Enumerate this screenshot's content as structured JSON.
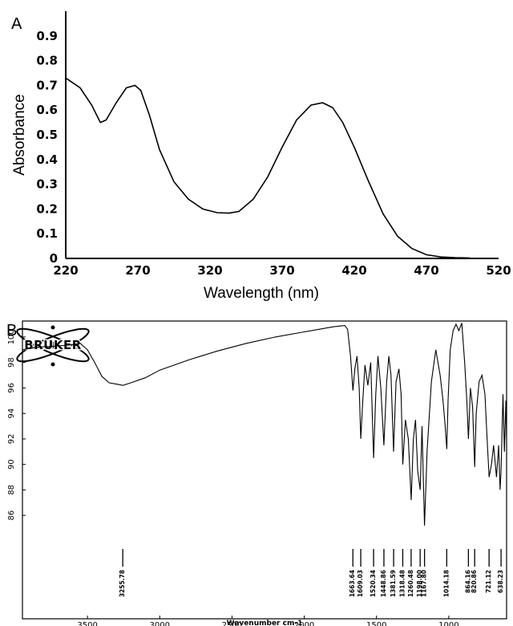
{
  "chart_data": [
    {
      "panel_label": "A",
      "type": "line",
      "title": "",
      "xlabel": "Wavelength (nm)",
      "ylabel": "Absorbance",
      "xlim": [
        220,
        520
      ],
      "ylim": [
        0,
        1.0
      ],
      "x_ticks": [
        "220",
        "270",
        "320",
        "370",
        "420",
        "470",
        "520"
      ],
      "y_ticks": [
        "0",
        "0.1",
        "0.2",
        "0.3",
        "0.4",
        "0.5",
        "0.6",
        "0.7",
        "0.8",
        "0.9"
      ],
      "grid": false,
      "line_color": "#000000",
      "series": [
        {
          "x": [
            220,
            230,
            238,
            244,
            248,
            255,
            262,
            268,
            272,
            278,
            285,
            295,
            305,
            315,
            325,
            333,
            340,
            350,
            360,
            370,
            380,
            390,
            398,
            405,
            412,
            420,
            430,
            440,
            450,
            460,
            470,
            480,
            490,
            500
          ],
          "values": [
            0.73,
            0.69,
            0.62,
            0.55,
            0.56,
            0.63,
            0.69,
            0.7,
            0.68,
            0.58,
            0.44,
            0.31,
            0.24,
            0.2,
            0.185,
            0.183,
            0.19,
            0.24,
            0.33,
            0.45,
            0.56,
            0.62,
            0.63,
            0.61,
            0.55,
            0.45,
            0.31,
            0.18,
            0.09,
            0.04,
            0.015,
            0.006,
            0.003,
            0.002
          ]
        }
      ]
    },
    {
      "panel_label": "B",
      "type": "line",
      "title": "",
      "xlabel": "Wavenumber cm-1",
      "ylabel": "",
      "logo": "BRUKER",
      "xlim": [
        3950,
        600
      ],
      "ylim": [
        84.5,
        101
      ],
      "x_ticks": [
        "3500",
        "3000",
        "2500",
        "2000",
        "1500",
        "1000"
      ],
      "y_ticks": [
        "86",
        "88",
        "90",
        "92",
        "94",
        "96",
        "98",
        "100"
      ],
      "grid": false,
      "line_color": "#000000",
      "series": [
        {
          "x": [
            3950,
            3850,
            3700,
            3600,
            3550,
            3500,
            3450,
            3400,
            3350,
            3300,
            3255,
            3200,
            3100,
            3000,
            2800,
            2600,
            2400,
            2200,
            2000,
            1800,
            1720,
            1700,
            1680,
            1663,
            1650,
            1635,
            1620,
            1609,
            1595,
            1580,
            1560,
            1540,
            1520,
            1505,
            1490,
            1470,
            1449,
            1430,
            1415,
            1400,
            1382,
            1365,
            1345,
            1330,
            1318,
            1300,
            1280,
            1260,
            1245,
            1230,
            1215,
            1198,
            1185,
            1168,
            1150,
            1120,
            1090,
            1060,
            1040,
            1025,
            1014,
            1005,
            990,
            970,
            950,
            930,
            910,
            890,
            875,
            864,
            850,
            835,
            821,
            810,
            790,
            770,
            750,
            735,
            721,
            705,
            690,
            670,
            655,
            645,
            638,
            625,
            615,
            605,
            600
          ],
          "values": [
            99.0,
            99.2,
            99.3,
            99.4,
            99.5,
            99.0,
            98.0,
            96.9,
            96.4,
            96.3,
            96.2,
            96.4,
            96.8,
            97.4,
            98.2,
            98.9,
            99.5,
            100.0,
            100.4,
            100.8,
            100.9,
            100.6,
            98.5,
            95.8,
            97.5,
            98.5,
            96.0,
            92.0,
            95.0,
            97.8,
            96.2,
            98.0,
            90.5,
            95.5,
            98.5,
            96.0,
            91.5,
            96.5,
            98.5,
            97.0,
            91.0,
            96.5,
            97.5,
            95.5,
            90.0,
            93.5,
            92.0,
            87.2,
            92.0,
            93.5,
            89.5,
            88.0,
            93.0,
            85.2,
            91.0,
            96.5,
            99.0,
            97.0,
            95.0,
            93.0,
            91.2,
            95.0,
            99.0,
            100.5,
            101.0,
            100.5,
            101.1,
            98.0,
            95.0,
            92.0,
            96.0,
            94.5,
            89.8,
            94.0,
            96.5,
            97.0,
            95.5,
            92.0,
            89.0,
            90.0,
            91.5,
            89.0,
            91.5,
            88.0,
            89.5,
            95.5,
            91.0,
            95.0,
            92.0
          ]
        }
      ],
      "peak_labels": [
        "3255.78",
        "1663.64",
        "1609.03",
        "1520.34",
        "1448.86",
        "1381.59",
        "1318.48",
        "1260.48",
        "1198.00",
        "1167.80",
        "1014.18",
        "864.16",
        "820.86",
        "721.12",
        "638.23"
      ]
    }
  ]
}
